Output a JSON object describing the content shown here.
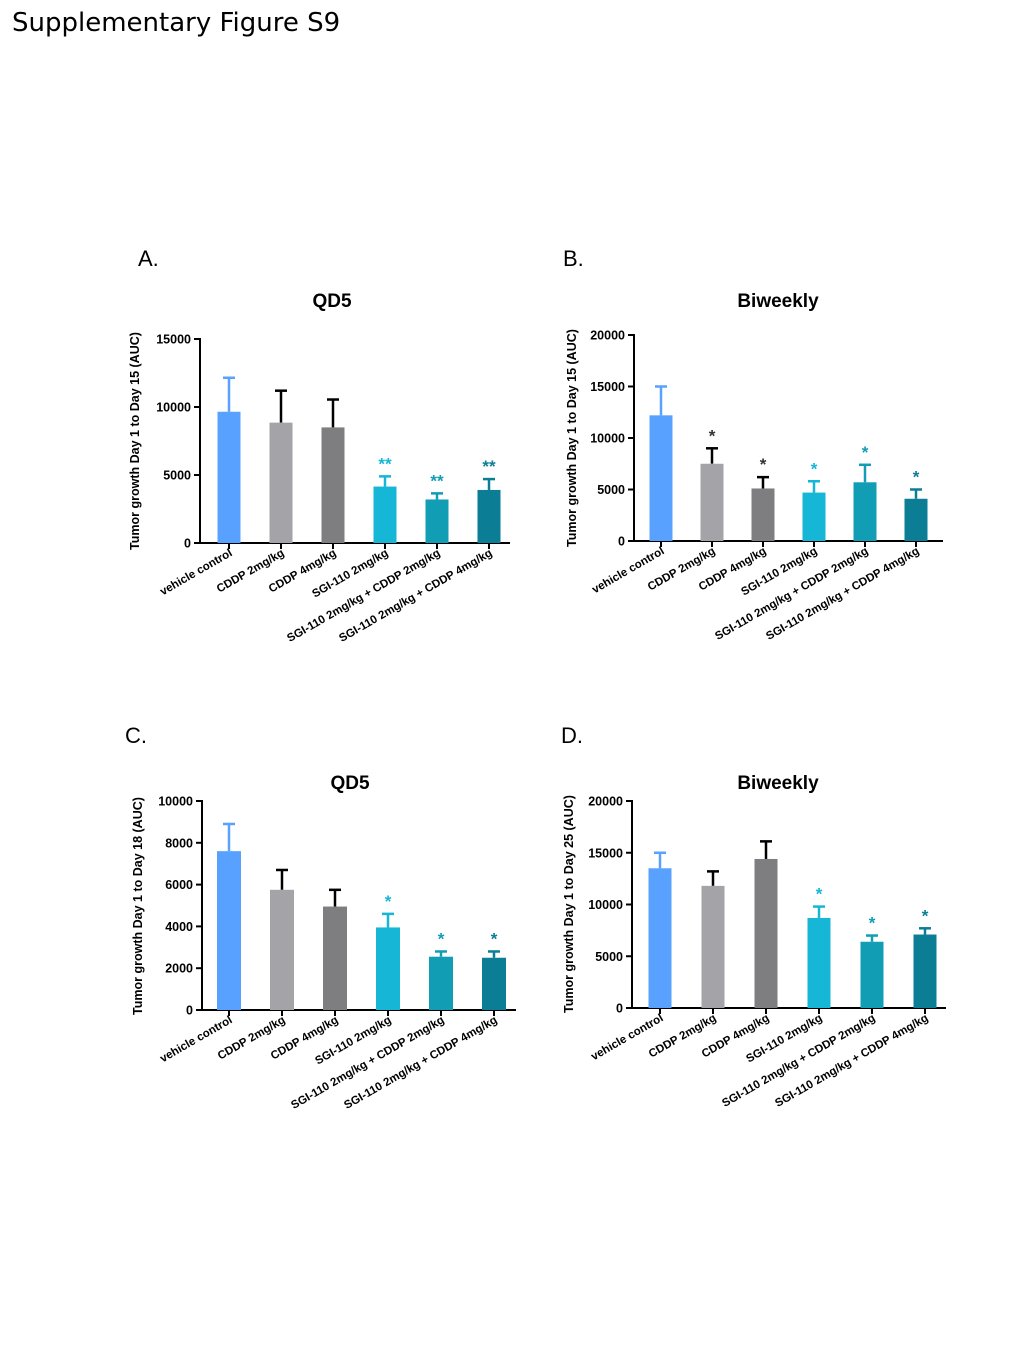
{
  "page_title": "Supplementary Figure S9",
  "colors": {
    "vehicle": "#58A1FF",
    "cddp2": "#A3A3A8",
    "cddp4": "#7E7E80",
    "sgi": "#15B6D6",
    "sgi_cddp2": "#119DB4",
    "sgi_cddp4": "#0B7E96",
    "axis": "#000000"
  },
  "chart_data": [
    {
      "type": "bar",
      "panel": "A.",
      "title": "QD5",
      "ylabel": "Tumor growth Day 1 to Day 15 (AUC)",
      "ylim": [
        0,
        15000
      ],
      "yticks": [
        0,
        5000,
        10000,
        15000
      ],
      "categories": [
        "vehicle control",
        "CDDP 2mg/kg",
        "CDDP 4mg/kg",
        "SGI-110 2mg/kg",
        "SGI-110 2mg/kg + CDDP 2mg/kg",
        "SGI-110 2mg/kg + CDDP 4mg/kg"
      ],
      "values": [
        9650,
        8850,
        8500,
        4150,
        3200,
        3900
      ],
      "errors": [
        2500,
        2350,
        2050,
        750,
        450,
        800
      ],
      "significance": [
        "",
        "",
        "",
        "**",
        "**",
        "**"
      ]
    },
    {
      "type": "bar",
      "panel": "B.",
      "title": "Biweekly",
      "ylabel": "Tumor growth Day 1 to Day 15 (AUC)",
      "ylim": [
        0,
        20000
      ],
      "yticks": [
        0,
        5000,
        10000,
        15000,
        20000
      ],
      "categories": [
        "vehicle control",
        "CDDP 2mg/kg",
        "CDDP 4mg/kg",
        "SGI-110 2mg/kg",
        "SGI-110 2mg/kg + CDDP 2mg/kg",
        "SGI-110 2mg/kg + CDDP 4mg/kg"
      ],
      "values": [
        12200,
        7500,
        5100,
        4700,
        5700,
        4100
      ],
      "errors": [
        2800,
        1500,
        1100,
        1100,
        1700,
        900
      ],
      "significance": [
        "",
        "*",
        "*",
        "*",
        "*",
        "*"
      ]
    },
    {
      "type": "bar",
      "panel": "C.",
      "title": "QD5",
      "ylabel": "Tumor growth Day 1 to Day 18 (AUC)",
      "ylim": [
        0,
        10000
      ],
      "yticks": [
        0,
        2000,
        4000,
        6000,
        8000,
        10000
      ],
      "categories": [
        "vehicle control",
        "CDDP 2mg/kg",
        "CDDP 4mg/kg",
        "SGI-110 2mg/kg",
        "SGI-110 2mg/kg + CDDP 2mg/kg",
        "SGI-110 2mg/kg + CDDP 4mg/kg"
      ],
      "values": [
        7600,
        5750,
        4950,
        3950,
        2550,
        2500
      ],
      "errors": [
        1300,
        950,
        800,
        650,
        250,
        300
      ],
      "significance": [
        "",
        "",
        "",
        "*",
        "*",
        "*"
      ]
    },
    {
      "type": "bar",
      "panel": "D.",
      "title": "Biweekly",
      "ylabel": "Tumor growth Day 1 to Day 25 (AUC)",
      "ylim": [
        0,
        20000
      ],
      "yticks": [
        0,
        5000,
        10000,
        15000,
        20000
      ],
      "categories": [
        "vehicle control",
        "CDDP 2mg/kg",
        "CDDP 4mg/kg",
        "SGI-110 2mg/kg",
        "SGI-110 2mg/kg + CDDP 2mg/kg",
        "SGI-110 2mg/kg + CDDP 4mg/kg"
      ],
      "values": [
        13500,
        11800,
        14400,
        8700,
        6400,
        7100
      ],
      "errors": [
        1500,
        1400,
        1700,
        1100,
        600,
        600
      ],
      "significance": [
        "",
        "",
        "",
        "*",
        "*",
        "*"
      ]
    }
  ]
}
